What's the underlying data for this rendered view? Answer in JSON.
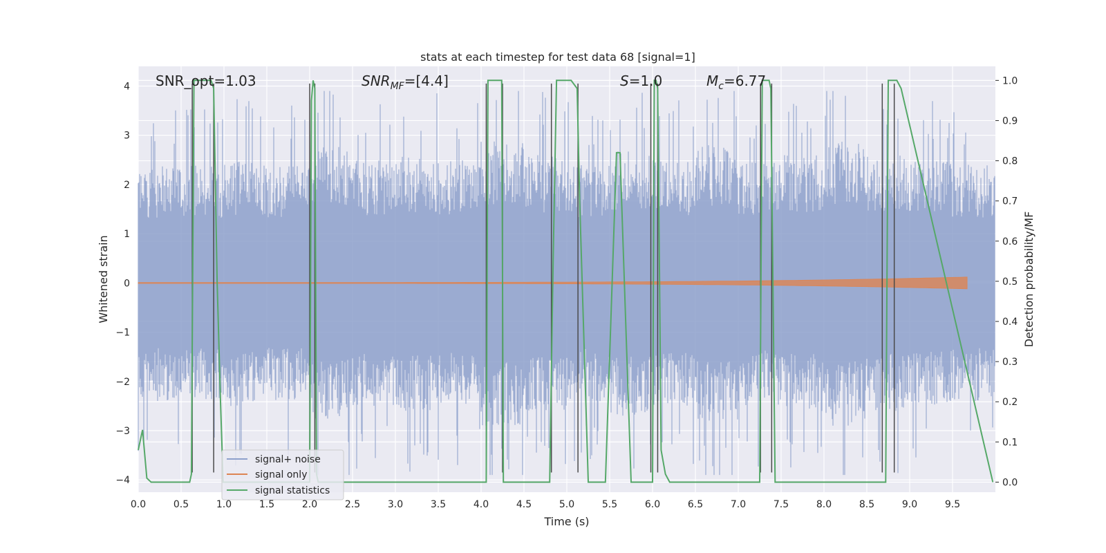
{
  "chart_data": {
    "type": "line",
    "title": "stats at each timestep for test data 68 [signal=1]",
    "xlabel": "Time (s)",
    "ylabel_left": "Whitened strain",
    "ylabel_right": "Detection probability/MF",
    "xlim": [
      0.0,
      10.0
    ],
    "ylim_left": [
      -4.25,
      4.4
    ],
    "ylim_right": [
      -0.025,
      1.035
    ],
    "x_ticks": [
      "0.0",
      "0.5",
      "1.0",
      "1.5",
      "2.0",
      "2.5",
      "3.0",
      "3.5",
      "4.0",
      "4.5",
      "5.0",
      "5.5",
      "6.0",
      "6.5",
      "7.0",
      "7.5",
      "8.0",
      "8.5",
      "9.0",
      "9.5"
    ],
    "y_left_ticks": [
      "−4",
      "−3",
      "−2",
      "−1",
      "0",
      "1",
      "2",
      "3",
      "4"
    ],
    "y_right_ticks": [
      "0.0",
      "0.1",
      "0.2",
      "0.3",
      "0.4",
      "0.5",
      "0.6",
      "0.7",
      "0.8",
      "0.9",
      "1.0"
    ],
    "grid": true,
    "legend_position": "lower-left",
    "colors": {
      "background": "#eaeaf2",
      "noise": "#8da0cb",
      "signal": "#dd8452",
      "stats": "#55a868",
      "vlines": "#4a4a4a"
    },
    "annotations": {
      "snr_opt": "SNR_opt=1.03",
      "snr_mf_main": "SNR",
      "snr_mf_sub": "MF",
      "snr_mf_value": "=[4.4]",
      "s_main": "S",
      "s_value": "=1.0",
      "mc_main": "M",
      "mc_sub": "c",
      "mc_value": "=6.77"
    },
    "series": [
      {
        "name": "signal+ noise",
        "axis": "left",
        "description_range": [
          -3.9,
          3.9
        ],
        "envelope": [
          2.4,
          2.4,
          2.5,
          2.4,
          2.8,
          2.5,
          2.6,
          2.5,
          2.9,
          2.6,
          2.4,
          2.7,
          2.5,
          2.8,
          2.5,
          2.6,
          2.9,
          2.6,
          2.5,
          2.4
        ]
      },
      {
        "name": "signal only",
        "axis": "left",
        "chirp": {
          "start": 0.0,
          "end": 9.67,
          "start_amp": 0.01,
          "end_amp": 0.12
        }
      },
      {
        "name": "signal statistics",
        "axis": "right",
        "x": [
          0.0,
          0.05,
          0.1,
          0.15,
          0.2,
          0.6,
          0.62,
          0.65,
          0.68,
          0.85,
          0.88,
          0.92,
          0.96,
          0.99,
          1.02,
          2.0,
          2.02,
          2.04,
          2.06,
          2.08,
          2.1,
          2.14,
          4.06,
          4.08,
          4.1,
          4.24,
          4.26,
          4.3,
          4.8,
          4.84,
          4.88,
          5.05,
          5.12,
          5.15,
          5.25,
          5.45,
          5.58,
          5.62,
          5.75,
          6.0,
          6.02,
          6.04,
          6.06,
          6.08,
          6.1,
          6.15,
          6.2,
          7.25,
          7.28,
          7.31,
          7.36,
          7.38,
          7.43,
          8.68,
          8.72,
          8.75,
          8.85,
          8.9,
          9.97
        ],
        "values": [
          0.08,
          0.13,
          0.01,
          0.0,
          0.0,
          0.0,
          0.02,
          1.0,
          1.0,
          1.0,
          0.98,
          0.5,
          0.2,
          0.0,
          0.0,
          0.0,
          0.95,
          1.0,
          0.98,
          0.02,
          0.0,
          0.0,
          0.0,
          1.0,
          1.0,
          1.0,
          0.0,
          0.0,
          0.0,
          0.55,
          1.0,
          1.0,
          0.98,
          0.7,
          0.0,
          0.0,
          0.82,
          0.82,
          0.0,
          0.0,
          1.0,
          1.0,
          0.98,
          0.55,
          0.08,
          0.02,
          0.0,
          0.0,
          1.0,
          1.0,
          1.0,
          0.98,
          0.0,
          0.0,
          0.0,
          1.0,
          1.0,
          0.98,
          0.0
        ]
      }
    ],
    "vertical_lines_x": [
      0.63,
      0.88,
      2.0,
      2.06,
      4.06,
      4.25,
      4.82,
      5.13,
      5.98,
      6.06,
      7.26,
      7.39,
      8.68,
      8.82
    ],
    "vertical_lines_range_left": [
      -3.85,
      4.05
    ],
    "legend": [
      "signal+ noise",
      "signal only",
      "signal statistics"
    ]
  }
}
